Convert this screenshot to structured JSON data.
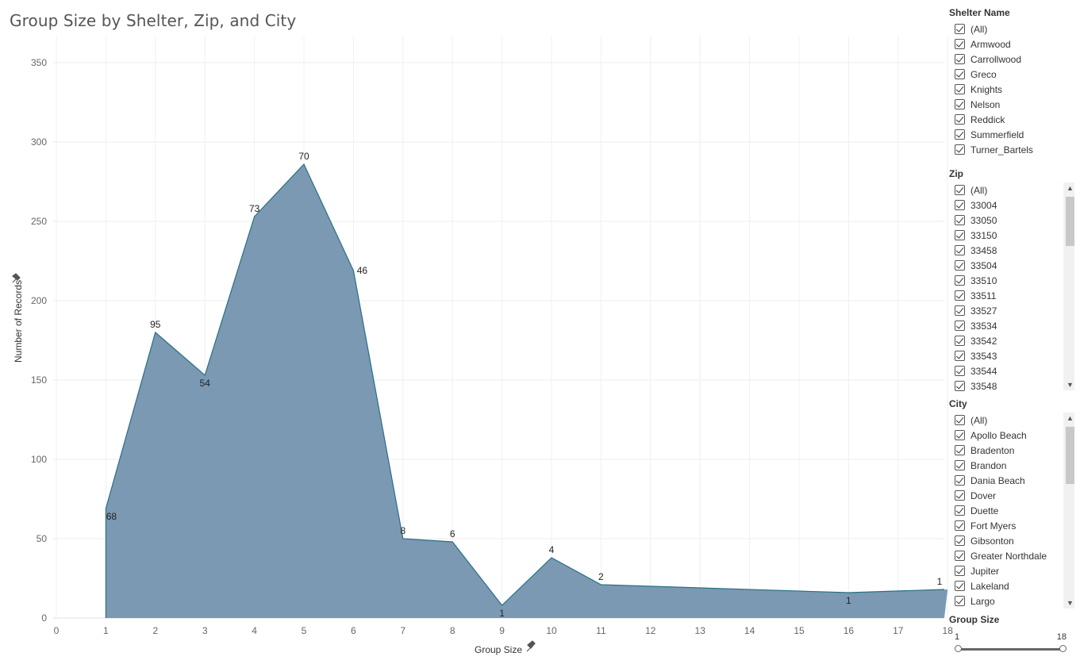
{
  "title": "Group Size by Shelter, Zip, and City",
  "chart_data": {
    "type": "area",
    "title": "Group Size by Shelter, Zip, and City",
    "xlabel": "Group Size",
    "ylabel": "Number of Records",
    "x_ticks": [
      "0",
      "1",
      "2",
      "3",
      "4",
      "5",
      "6",
      "7",
      "8",
      "9",
      "10",
      "11",
      "12",
      "13",
      "14",
      "15",
      "16",
      "17",
      "18"
    ],
    "y_ticks": [
      "0",
      "50",
      "100",
      "150",
      "200",
      "250",
      "300",
      "350"
    ],
    "xlim": [
      0,
      18
    ],
    "ylim": [
      0,
      350
    ],
    "grid": true,
    "color": "#7b99b3",
    "line_color": "#2a6f86",
    "points": [
      {
        "x": 1,
        "y": 69,
        "label": "68"
      },
      {
        "x": 2,
        "y": 180,
        "label": "95"
      },
      {
        "x": 3,
        "y": 153,
        "label": "54"
      },
      {
        "x": 4,
        "y": 253,
        "label": "73"
      },
      {
        "x": 5,
        "y": 286,
        "label": "70"
      },
      {
        "x": 6,
        "y": 219,
        "label": "46"
      },
      {
        "x": 7,
        "y": 50,
        "label": "8"
      },
      {
        "x": 8,
        "y": 48,
        "label": "6"
      },
      {
        "x": 9,
        "y": 8,
        "label": "1"
      },
      {
        "x": 10,
        "y": 38,
        "label": "4"
      },
      {
        "x": 11,
        "y": 21,
        "label": "2"
      },
      {
        "x": 16,
        "y": 16,
        "label": "1"
      },
      {
        "x": 18,
        "y": 18,
        "label": "1"
      }
    ]
  },
  "filters": {
    "shelter": {
      "title": "Shelter Name",
      "items": [
        "(All)",
        "Armwood",
        "Carrollwood",
        "Greco",
        "Knights",
        "Nelson",
        "Reddick",
        "Summerfield",
        "Turner_Bartels"
      ]
    },
    "zip": {
      "title": "Zip",
      "items": [
        "(All)",
        "33004",
        "33050",
        "33150",
        "33458",
        "33504",
        "33510",
        "33511",
        "33527",
        "33534",
        "33542",
        "33543",
        "33544",
        "33548"
      ]
    },
    "city": {
      "title": "City",
      "items": [
        "(All)",
        "Apollo Beach",
        "Bradenton",
        "Brandon",
        "Dania Beach",
        "Dover",
        "Duette",
        "Fort Myers",
        "Gibsonton",
        "Greater Northdale",
        "Jupiter",
        "Lakeland",
        "Largo"
      ]
    },
    "group_size": {
      "title": "Group Size",
      "min": "1",
      "max": "18"
    }
  }
}
